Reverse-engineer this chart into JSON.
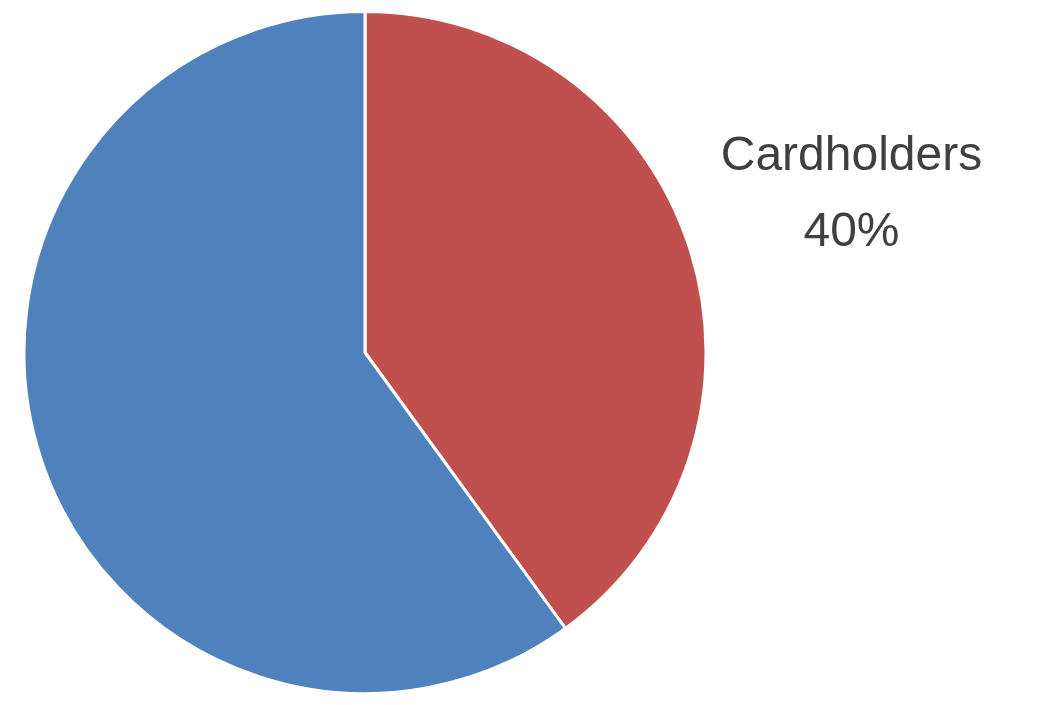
{
  "chart_data": {
    "type": "pie",
    "categories": [
      "Cardholders",
      null
    ],
    "values": [
      40,
      60
    ],
    "colors": [
      "#c0504d",
      "#4f81bd"
    ],
    "value_labels": [
      "40%",
      null
    ],
    "legend": false
  }
}
